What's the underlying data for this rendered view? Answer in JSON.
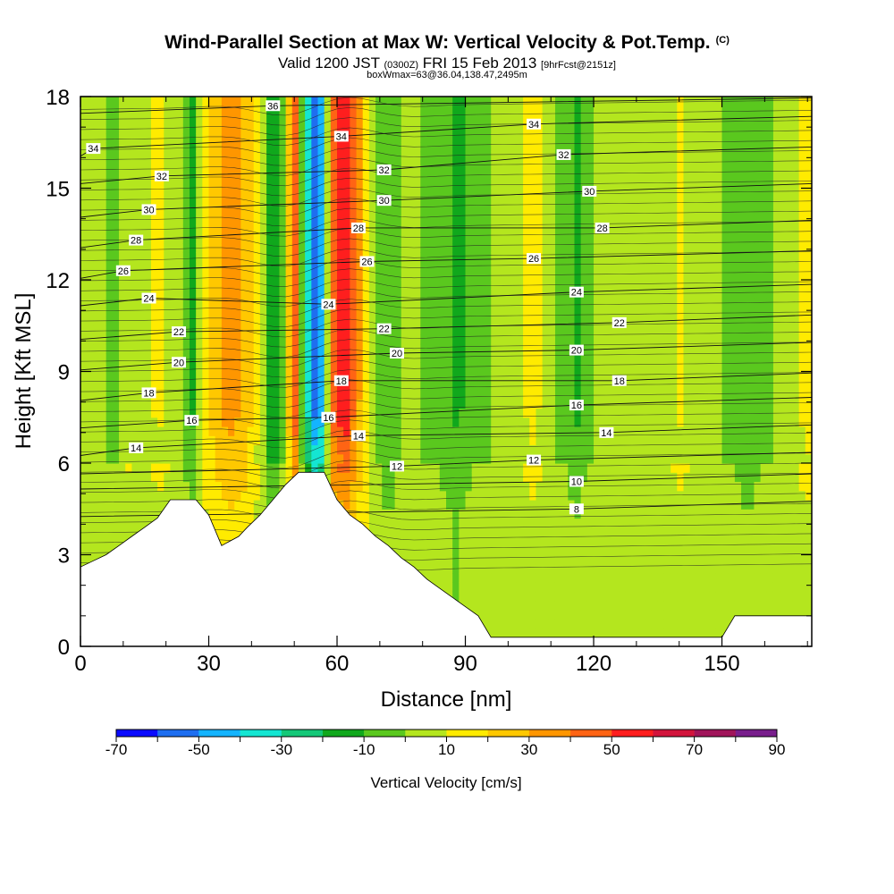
{
  "title": {
    "main": "Wind-Parallel Section at Max W: Vertical Velocity & Pot.Temp.",
    "copyright": "(C)",
    "valid_prefix": "Valid 1200 JST",
    "valid_utc": "(0300Z)",
    "valid_date": "FRI 15 Feb 2013",
    "forecast": "[9hrFcst@2151z]",
    "box": "boxWmax=63@36.04,138.47,2495m"
  },
  "chart_data": {
    "type": "heatmap",
    "xlabel": "Distance [nm]",
    "ylabel": "Height [Kft MSL]",
    "xlim": [
      0,
      171
    ],
    "ylim": [
      0,
      18
    ],
    "x_ticks": [
      "0",
      "30",
      "60",
      "90",
      "120",
      "150"
    ],
    "x_tick_values": [
      0,
      30,
      60,
      90,
      120,
      150
    ],
    "y_ticks": [
      "0",
      "3",
      "6",
      "9",
      "12",
      "15",
      "18"
    ],
    "y_tick_values": [
      0,
      3,
      6,
      9,
      12,
      15,
      18
    ],
    "colorbar": {
      "label": "Vertical Velocity [cm/s]",
      "bounds": [
        -70,
        -60,
        -50,
        -40,
        -30,
        -20,
        -10,
        0,
        10,
        20,
        30,
        40,
        50,
        60,
        70,
        80,
        90
      ],
      "tick_labels": [
        "-70",
        "-50",
        "-30",
        "-10",
        "10",
        "30",
        "50",
        "70",
        "90"
      ],
      "colors": [
        "#0a0aff",
        "#1e6ef0",
        "#14b4ff",
        "#14e6d2",
        "#14c878",
        "#10a81c",
        "#5ac81e",
        "#b4e61e",
        "#ffeb00",
        "#ffc800",
        "#ff9600",
        "#ff6414",
        "#ff1e1e",
        "#d2143c",
        "#a0145a",
        "#781e8c"
      ]
    },
    "wmax_bands": [
      {
        "x": 0,
        "w": 4
      },
      {
        "x": 2,
        "w": 2
      },
      {
        "x": 5,
        "w": 8
      },
      {
        "x": 8,
        "w": -6
      },
      {
        "x": 11,
        "w": 10
      },
      {
        "x": 14,
        "w": 5
      },
      {
        "x": 18,
        "w": 12
      },
      {
        "x": 22,
        "w": 8
      },
      {
        "x": 26,
        "w": -14
      },
      {
        "x": 30,
        "w": 22
      },
      {
        "x": 35,
        "w": 38
      },
      {
        "x": 39,
        "w": 28
      },
      {
        "x": 42,
        "w": 8
      },
      {
        "x": 45,
        "w": -22
      },
      {
        "x": 48,
        "w": 4
      },
      {
        "x": 50,
        "w": 58
      },
      {
        "x": 52,
        "w": -12
      },
      {
        "x": 54,
        "w": -44
      },
      {
        "x": 55.5,
        "w": -63
      },
      {
        "x": 57,
        "w": -28
      },
      {
        "x": 59,
        "w": 48
      },
      {
        "x": 62,
        "w": 62
      },
      {
        "x": 65,
        "w": 32
      },
      {
        "x": 67,
        "w": 16
      },
      {
        "x": 69,
        "w": 2
      },
      {
        "x": 72,
        "w": -13
      },
      {
        "x": 76,
        "w": 4
      },
      {
        "x": 82,
        "w": -4
      },
      {
        "x": 88,
        "w": -12
      },
      {
        "x": 94,
        "w": -3
      },
      {
        "x": 100,
        "w": 5
      },
      {
        "x": 106,
        "w": 13
      },
      {
        "x": 111,
        "w": 2
      },
      {
        "x": 116,
        "w": -12
      },
      {
        "x": 121,
        "w": 2
      },
      {
        "x": 125,
        "w": 8
      },
      {
        "x": 130,
        "w": 2
      },
      {
        "x": 135,
        "w": 3
      },
      {
        "x": 140,
        "w": 12
      },
      {
        "x": 146,
        "w": 3
      },
      {
        "x": 150,
        "w": 0
      },
      {
        "x": 156,
        "w": -11
      },
      {
        "x": 160,
        "w": -4
      },
      {
        "x": 164,
        "w": 2
      },
      {
        "x": 167,
        "w": 8
      },
      {
        "x": 170,
        "w": 14
      },
      {
        "x": 171,
        "w": 12
      }
    ],
    "terrain_kft": [
      {
        "x": 0,
        "h": 2.6
      },
      {
        "x": 3,
        "h": 2.8
      },
      {
        "x": 6,
        "h": 3.0
      },
      {
        "x": 9,
        "h": 3.3
      },
      {
        "x": 12,
        "h": 3.6
      },
      {
        "x": 15,
        "h": 3.9
      },
      {
        "x": 18,
        "h": 4.2
      },
      {
        "x": 21,
        "h": 4.8
      },
      {
        "x": 27,
        "h": 4.8
      },
      {
        "x": 30,
        "h": 4.3
      },
      {
        "x": 33,
        "h": 3.3
      },
      {
        "x": 37,
        "h": 3.6
      },
      {
        "x": 39,
        "h": 3.9
      },
      {
        "x": 42,
        "h": 4.3
      },
      {
        "x": 45,
        "h": 4.8
      },
      {
        "x": 48,
        "h": 5.3
      },
      {
        "x": 51,
        "h": 5.7
      },
      {
        "x": 57,
        "h": 5.7
      },
      {
        "x": 60,
        "h": 4.8
      },
      {
        "x": 63,
        "h": 4.3
      },
      {
        "x": 66,
        "h": 4.0
      },
      {
        "x": 69,
        "h": 3.6
      },
      {
        "x": 72,
        "h": 3.3
      },
      {
        "x": 75,
        "h": 2.9
      },
      {
        "x": 78,
        "h": 2.6
      },
      {
        "x": 81,
        "h": 2.2
      },
      {
        "x": 84,
        "h": 1.9
      },
      {
        "x": 87,
        "h": 1.6
      },
      {
        "x": 90,
        "h": 1.3
      },
      {
        "x": 93,
        "h": 1.0
      },
      {
        "x": 96,
        "h": 0.3
      },
      {
        "x": 114,
        "h": 0.3
      },
      {
        "x": 150,
        "h": 0.3
      },
      {
        "x": 153,
        "h": 1.0
      },
      {
        "x": 171,
        "h": 1.0
      }
    ],
    "theta_contour_labels": [
      {
        "text": "36",
        "x": 45,
        "y": 17.7
      },
      {
        "text": "34",
        "x": 3,
        "y": 16.3
      },
      {
        "text": "34",
        "x": 61,
        "y": 16.7
      },
      {
        "text": "34",
        "x": 106,
        "y": 17.1
      },
      {
        "text": "32",
        "x": 19,
        "y": 15.4
      },
      {
        "text": "32",
        "x": 71,
        "y": 15.6
      },
      {
        "text": "32",
        "x": 113,
        "y": 16.1
      },
      {
        "text": "30",
        "x": 16,
        "y": 14.3
      },
      {
        "text": "30",
        "x": 71,
        "y": 14.6
      },
      {
        "text": "30",
        "x": 119,
        "y": 14.9
      },
      {
        "text": "28",
        "x": 13,
        "y": 13.3
      },
      {
        "text": "28",
        "x": 65,
        "y": 13.7
      },
      {
        "text": "28",
        "x": 122,
        "y": 13.7
      },
      {
        "text": "26",
        "x": 10,
        "y": 12.3
      },
      {
        "text": "26",
        "x": 67,
        "y": 12.6
      },
      {
        "text": "26",
        "x": 106,
        "y": 12.7
      },
      {
        "text": "24",
        "x": 16,
        "y": 11.4
      },
      {
        "text": "24",
        "x": 58,
        "y": 11.2
      },
      {
        "text": "24",
        "x": 116,
        "y": 11.6
      },
      {
        "text": "22",
        "x": 23,
        "y": 10.3
      },
      {
        "text": "22",
        "x": 71,
        "y": 10.4
      },
      {
        "text": "22",
        "x": 126,
        "y": 10.6
      },
      {
        "text": "20",
        "x": 23,
        "y": 9.3
      },
      {
        "text": "20",
        "x": 74,
        "y": 9.6
      },
      {
        "text": "20",
        "x": 116,
        "y": 9.7
      },
      {
        "text": "18",
        "x": 16,
        "y": 8.3
      },
      {
        "text": "18",
        "x": 61,
        "y": 8.7
      },
      {
        "text": "18",
        "x": 126,
        "y": 8.7
      },
      {
        "text": "16",
        "x": 26,
        "y": 7.4
      },
      {
        "text": "16",
        "x": 58,
        "y": 7.5
      },
      {
        "text": "16",
        "x": 116,
        "y": 7.9
      },
      {
        "text": "14",
        "x": 13,
        "y": 6.5
      },
      {
        "text": "14",
        "x": 65,
        "y": 6.9
      },
      {
        "text": "14",
        "x": 123,
        "y": 7.0
      },
      {
        "text": "12",
        "x": 74,
        "y": 5.9
      },
      {
        "text": "12",
        "x": 106,
        "y": 6.1
      },
      {
        "text": "10",
        "x": 116,
        "y": 5.4
      },
      {
        "text": "8",
        "x": 116,
        "y": 4.5
      }
    ]
  }
}
